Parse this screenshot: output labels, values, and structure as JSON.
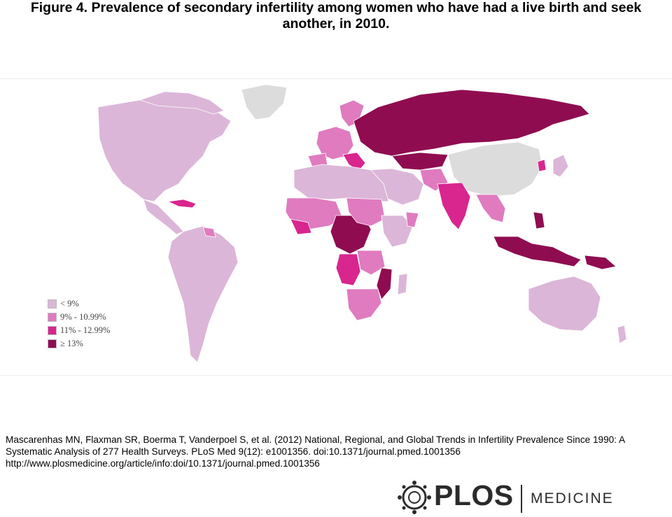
{
  "title": {
    "line1": "Figure 4. Prevalence of secondary infertility among women who have had a live birth and seek",
    "line2": "another, in 2010."
  },
  "colors": {
    "lt9": "#dcb6d9",
    "9to11": "#e07bbf",
    "11to13": "#d9268e",
    "gte13": "#8e0c4f",
    "nodata": "#dcdcdc"
  },
  "legend": [
    {
      "label": "< 9%",
      "color": "#dcb6d9"
    },
    {
      "label": "9% - 10.99%",
      "color": "#e07bbf"
    },
    {
      "label": "11% - 12.99%",
      "color": "#d9268e"
    },
    {
      "label": "≥ 13%",
      "color": "#8e0c4f"
    }
  ],
  "citation": {
    "line1": "Mascarenhas MN, Flaxman SR, Boerma T, Vanderpoel S, et al. (2012) National, Regional, and Global Trends in Infertility Prevalence Since 1990: A",
    "line2": "Systematic Analysis of 277 Health Surveys. PLoS Med 9(12): e1001356. doi:10.1371/journal.pmed.1001356",
    "line3": "http://www.plosmedicine.org/article/info:doi/10.1371/journal.pmed.1001356"
  },
  "logo": {
    "word": "PLOS",
    "sub": "MEDICINE"
  }
}
